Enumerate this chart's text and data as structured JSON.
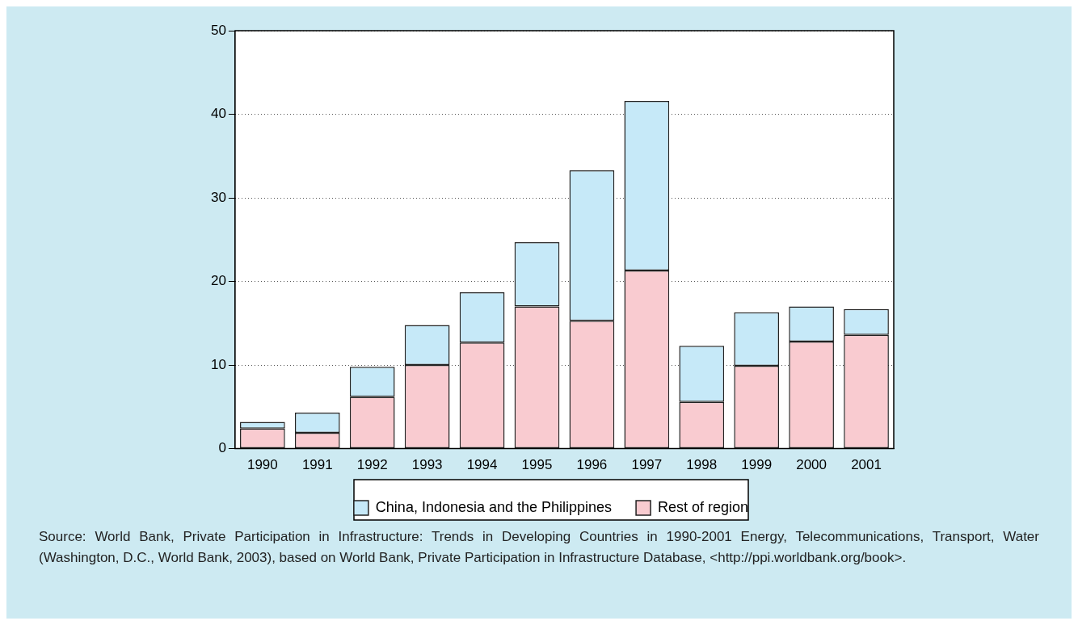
{
  "chart_data": {
    "type": "bar",
    "stacked": true,
    "categories": [
      "1990",
      "1991",
      "1992",
      "1993",
      "1994",
      "1995",
      "1996",
      "1997",
      "1998",
      "1999",
      "2000",
      "2001"
    ],
    "series": [
      {
        "name": "Rest of region",
        "color": "#f9cbd0",
        "values": [
          2.4,
          1.9,
          6.2,
          10.0,
          12.7,
          17.0,
          15.3,
          21.3,
          5.6,
          9.9,
          12.8,
          13.6
        ]
      },
      {
        "name": "China, Indonesia and the Philippines",
        "color": "#c6e9f8",
        "values": [
          0.8,
          2.4,
          3.6,
          4.8,
          6.0,
          7.7,
          18.0,
          20.3,
          6.7,
          6.4,
          4.2,
          3.1
        ]
      }
    ],
    "ylim": [
      0,
      50
    ],
    "yticks": [
      0,
      10,
      20,
      30,
      40,
      50
    ],
    "grid": "y",
    "legend": "bottom",
    "annotations": [
      "Source: World Bank, Private Participation in Infrastructure: Trends in Developing Countries in 1990-2001 Energy, Telecommunications, Transport, Water (Washington, D.C., World Bank, 2003), based on World Bank, Private Participation in Infrastructure Database, <http://ppi.worldbank.org/book>."
    ]
  }
}
